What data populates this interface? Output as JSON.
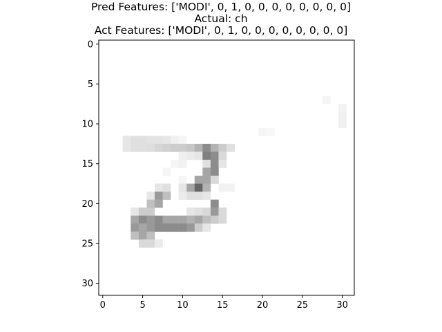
{
  "titles": {
    "pred": "Pred Features: ['MODI', 0, 1, 0, 0, 0, 0, 0, 0, 0, 0]",
    "actual": "Actual: ch",
    "act": "Act Features: ['MODI', 0, 1, 0, 0, 0, 0, 0, 0, 0, 0]"
  },
  "chart_data": {
    "type": "heatmap",
    "colormap": "gray_r",
    "grid": false,
    "xlim": [
      -0.5,
      31.5
    ],
    "ylim": [
      31.5,
      -0.5
    ],
    "xticks": [
      0,
      5,
      10,
      15,
      20,
      25,
      30
    ],
    "yticks": [
      0,
      5,
      10,
      15,
      20,
      25,
      30
    ],
    "shape": [
      32,
      32
    ],
    "background": 0.0,
    "cells": [
      [
        7,
        28,
        0.04
      ],
      [
        8,
        30,
        0.05
      ],
      [
        9,
        30,
        0.06
      ],
      [
        10,
        30,
        0.06
      ],
      [
        11,
        20,
        0.04
      ],
      [
        11,
        21,
        0.03
      ],
      [
        12,
        3,
        0.1
      ],
      [
        12,
        4,
        0.12
      ],
      [
        12,
        5,
        0.12
      ],
      [
        12,
        6,
        0.11
      ],
      [
        12,
        7,
        0.11
      ],
      [
        12,
        8,
        0.1
      ],
      [
        12,
        9,
        0.06
      ],
      [
        12,
        10,
        0.04
      ],
      [
        13,
        3,
        0.1
      ],
      [
        13,
        4,
        0.12
      ],
      [
        13,
        5,
        0.12
      ],
      [
        13,
        6,
        0.13
      ],
      [
        13,
        7,
        0.16
      ],
      [
        13,
        8,
        0.18
      ],
      [
        13,
        9,
        0.2
      ],
      [
        13,
        10,
        0.2
      ],
      [
        13,
        11,
        0.22
      ],
      [
        13,
        12,
        0.3
      ],
      [
        13,
        13,
        0.45
      ],
      [
        13,
        14,
        0.3
      ],
      [
        13,
        15,
        0.2
      ],
      [
        13,
        16,
        0.12
      ],
      [
        14,
        10,
        0.06
      ],
      [
        14,
        11,
        0.08
      ],
      [
        14,
        12,
        0.1
      ],
      [
        14,
        13,
        0.5
      ],
      [
        14,
        14,
        0.45
      ],
      [
        14,
        15,
        0.15
      ],
      [
        15,
        9,
        0.04
      ],
      [
        15,
        10,
        0.05
      ],
      [
        15,
        13,
        0.12
      ],
      [
        15,
        14,
        0.45
      ],
      [
        15,
        15,
        0.1
      ],
      [
        16,
        8,
        0.04
      ],
      [
        16,
        13,
        0.35
      ],
      [
        16,
        14,
        0.45
      ],
      [
        17,
        10,
        0.04
      ],
      [
        17,
        12,
        0.35
      ],
      [
        17,
        13,
        0.35
      ],
      [
        17,
        14,
        0.15
      ],
      [
        18,
        7,
        0.1
      ],
      [
        18,
        8,
        0.12
      ],
      [
        18,
        10,
        0.1
      ],
      [
        18,
        11,
        0.35
      ],
      [
        18,
        12,
        0.6
      ],
      [
        18,
        13,
        0.3
      ],
      [
        18,
        15,
        0.05
      ],
      [
        18,
        16,
        0.05
      ],
      [
        19,
        6,
        0.1
      ],
      [
        19,
        7,
        0.4
      ],
      [
        19,
        8,
        0.25
      ],
      [
        19,
        10,
        0.08
      ],
      [
        19,
        11,
        0.12
      ],
      [
        19,
        12,
        0.12
      ],
      [
        19,
        13,
        0.1
      ],
      [
        20,
        6,
        0.25
      ],
      [
        20,
        7,
        0.35
      ],
      [
        20,
        14,
        0.45
      ],
      [
        21,
        4,
        0.1
      ],
      [
        21,
        5,
        0.2
      ],
      [
        21,
        6,
        0.2
      ],
      [
        21,
        11,
        0.1
      ],
      [
        21,
        12,
        0.12
      ],
      [
        21,
        13,
        0.15
      ],
      [
        21,
        14,
        0.4
      ],
      [
        21,
        15,
        0.15
      ],
      [
        22,
        4,
        0.35
      ],
      [
        22,
        5,
        0.45
      ],
      [
        22,
        6,
        0.4
      ],
      [
        22,
        7,
        0.45
      ],
      [
        22,
        8,
        0.35
      ],
      [
        22,
        9,
        0.35
      ],
      [
        22,
        10,
        0.35
      ],
      [
        22,
        11,
        0.3
      ],
      [
        22,
        12,
        0.35
      ],
      [
        22,
        13,
        0.25
      ],
      [
        22,
        14,
        0.2
      ],
      [
        22,
        15,
        0.15
      ],
      [
        23,
        4,
        0.4
      ],
      [
        23,
        5,
        0.35
      ],
      [
        23,
        6,
        0.4
      ],
      [
        23,
        7,
        0.45
      ],
      [
        23,
        8,
        0.45
      ],
      [
        23,
        9,
        0.45
      ],
      [
        23,
        10,
        0.45
      ],
      [
        23,
        11,
        0.4
      ],
      [
        23,
        12,
        0.2
      ],
      [
        23,
        13,
        0.1
      ],
      [
        24,
        4,
        0.25
      ],
      [
        24,
        5,
        0.35
      ],
      [
        24,
        6,
        0.25
      ],
      [
        25,
        5,
        0.15
      ],
      [
        25,
        6,
        0.15
      ],
      [
        25,
        7,
        0.08
      ]
    ]
  }
}
